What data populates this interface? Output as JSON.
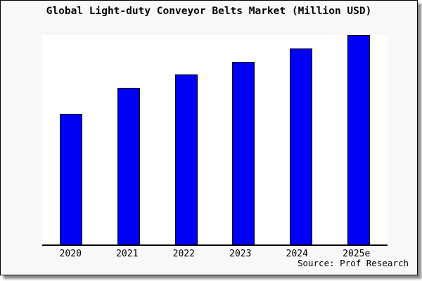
{
  "figure": {
    "title": "Global Light-duty Conveyor Belts Market (Million USD)",
    "source": "Source: Prof Research",
    "background_color": "#f8f8f8",
    "plot_background_color": "#ffffff",
    "border_color": "#000000"
  },
  "chart_data": {
    "type": "bar",
    "title": "Global Light-duty Conveyor Belts Market (Million USD)",
    "categories": [
      "2020",
      "2021",
      "2022",
      "2023",
      "2024",
      "2025e"
    ],
    "values": [
      62.5,
      74.9,
      81.3,
      87.3,
      93.6,
      100.0
    ],
    "value_note": "y-axis has no ticks or labels; values are relative bar heights with 2025e = 100",
    "xlabel": "",
    "ylabel": "",
    "ylim": [
      0,
      100
    ],
    "grid": false,
    "legend": "none",
    "bar_color": "#0000f5",
    "bar_edge_color": "#000000",
    "axis_line_color": "#000000",
    "source": "Source: Prof Research"
  }
}
